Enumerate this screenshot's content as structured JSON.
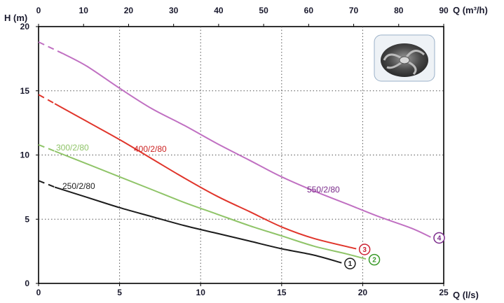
{
  "chart_data": {
    "type": "line",
    "x_axis_bottom": {
      "label": "Q (l/s)",
      "min": 0,
      "max": 25,
      "ticks": [
        "0",
        "5",
        "10",
        "15",
        "20",
        "25"
      ]
    },
    "x_axis_top": {
      "label": "Q (m³/h)",
      "min": 0,
      "max": 90,
      "ticks": [
        "0",
        "10",
        "20",
        "30",
        "40",
        "50",
        "60",
        "70",
        "80",
        "90"
      ]
    },
    "y_axis": {
      "label": "H (m)",
      "min": 0,
      "max": 20,
      "ticks": [
        "0",
        "5",
        "10",
        "15",
        "20"
      ]
    },
    "grid": true,
    "series": [
      {
        "name": "250/2/80",
        "marker": "1",
        "color": "#1c1c1c",
        "dashed_points": [
          [
            0,
            8.0
          ],
          [
            1,
            7.5
          ]
        ],
        "points": [
          [
            1,
            7.5
          ],
          [
            3,
            6.7
          ],
          [
            5,
            5.9
          ],
          [
            7,
            5.2
          ],
          [
            9,
            4.5
          ],
          [
            11,
            3.9
          ],
          [
            13,
            3.3
          ],
          [
            15,
            2.7
          ],
          [
            17,
            2.2
          ],
          [
            18.7,
            1.6
          ]
        ]
      },
      {
        "name": "300/2/80",
        "marker": "2",
        "color": "#8fc468",
        "dashed_points": [
          [
            0,
            10.8
          ],
          [
            1,
            10.3
          ]
        ],
        "points": [
          [
            1,
            10.3
          ],
          [
            3,
            9.3
          ],
          [
            5,
            8.3
          ],
          [
            7,
            7.3
          ],
          [
            9,
            6.3
          ],
          [
            11,
            5.4
          ],
          [
            13,
            4.5
          ],
          [
            15,
            3.7
          ],
          [
            17,
            2.9
          ],
          [
            19,
            2.3
          ],
          [
            20.2,
            1.9
          ]
        ]
      },
      {
        "name": "400/2/80",
        "marker": "3",
        "color": "#e0352b",
        "dashed_points": [
          [
            0,
            14.7
          ],
          [
            1,
            14.0
          ]
        ],
        "points": [
          [
            1,
            14.0
          ],
          [
            3,
            12.6
          ],
          [
            5,
            11.2
          ],
          [
            7,
            9.7
          ],
          [
            9,
            8.2
          ],
          [
            11,
            6.8
          ],
          [
            13,
            5.6
          ],
          [
            15,
            4.4
          ],
          [
            17,
            3.5
          ],
          [
            19.6,
            2.7
          ]
        ]
      },
      {
        "name": "550/2/80",
        "marker": "4",
        "color": "#c070c2",
        "dashed_points": [
          [
            0,
            18.8
          ],
          [
            1.5,
            17.9
          ]
        ],
        "points": [
          [
            1.5,
            17.9
          ],
          [
            3,
            16.9
          ],
          [
            5,
            15.2
          ],
          [
            7,
            13.6
          ],
          [
            9,
            12.3
          ],
          [
            11,
            10.9
          ],
          [
            13,
            9.6
          ],
          [
            15,
            8.3
          ],
          [
            17,
            7.2
          ],
          [
            19,
            6.2
          ],
          [
            21,
            5.2
          ],
          [
            23,
            4.3
          ],
          [
            24.2,
            3.6
          ]
        ]
      }
    ],
    "label_colors": {
      "250/2/80": "#1c1c1c",
      "300/2/80": "#8fc468",
      "400/2/80": "#cc2222",
      "550/2/80": "#7a2a8a"
    },
    "marker_colors": {
      "1": "#1c1c1c",
      "2": "#3a9a2a",
      "3": "#cc2233",
      "4": "#7a2a8a"
    }
  },
  "image": {
    "icon": "impeller-icon"
  }
}
